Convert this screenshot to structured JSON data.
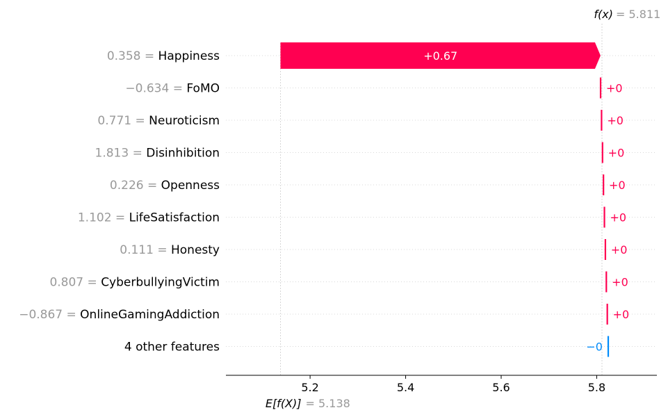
{
  "chart_data": {
    "type": "waterfall",
    "title": "",
    "xlabel": "",
    "ylabel": "",
    "base_value": 5.138,
    "base_value_text": "5.138",
    "output_value": 5.811,
    "output_value_text": "5.811",
    "base_label": "E[f(X)]",
    "output_label": "f(x)",
    "xlim": [
      5.05,
      5.92
    ],
    "x_ticks": [
      5.2,
      5.4,
      5.6,
      5.8
    ],
    "x_tick_labels": [
      "5.2",
      "5.4",
      "5.6",
      "5.8"
    ],
    "features": [
      {
        "value_text": "0.358",
        "name": "Happiness",
        "contribution": 0.67,
        "label": "+0.67"
      },
      {
        "value_text": "−0.634",
        "name": "FoMO",
        "contribution": 0.002,
        "label": "+0"
      },
      {
        "value_text": "0.771",
        "name": "Neuroticism",
        "contribution": 0.002,
        "label": "+0"
      },
      {
        "value_text": "1.813",
        "name": "Disinhibition",
        "contribution": 0.002,
        "label": "+0"
      },
      {
        "value_text": "0.226",
        "name": "Openness",
        "contribution": 0.002,
        "label": "+0"
      },
      {
        "value_text": "1.102",
        "name": "LifeSatisfaction",
        "contribution": 0.002,
        "label": "+0"
      },
      {
        "value_text": "0.111",
        "name": "Honesty",
        "contribution": 0.002,
        "label": "+0"
      },
      {
        "value_text": "0.807",
        "name": "CyberbullyingVictim",
        "contribution": 0.002,
        "label": "+0"
      },
      {
        "value_text": "−0.867",
        "name": "OnlineGamingAddiction",
        "contribution": 0.002,
        "label": "+0"
      },
      {
        "value_text": "",
        "name": "4 other features",
        "contribution": -0.002,
        "label": "−0"
      }
    ],
    "colors": {
      "positive": "#ff0051",
      "negative": "#008bfb",
      "grid": "#cccccc",
      "muted": "#999999"
    }
  }
}
